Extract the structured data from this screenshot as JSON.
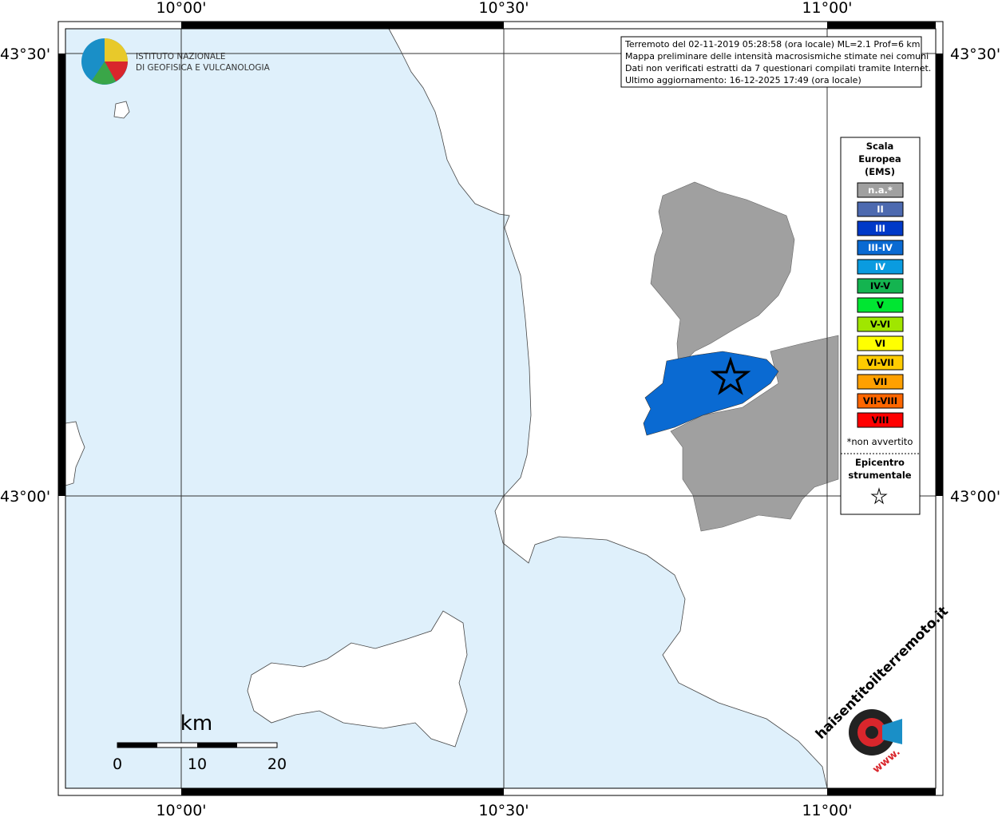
{
  "coordinates": {
    "lon_labels": [
      "10°00'",
      "10°30'",
      "11°00'"
    ],
    "lat_labels": [
      "43°30'",
      "43°00'"
    ]
  },
  "logo": {
    "line1": "ISTITUTO NAZIONALE",
    "line2": "DI GEOFISICA E VULCANOLOGIA"
  },
  "info_box": {
    "lines": [
      "Terremoto del 02-11-2019 05:28:58 (ora locale) ML=2.1 Prof=6 km",
      "Mappa preliminare delle intensità macrosismiche stimate nei comuni",
      "Dati non verificati estratti da 7 questionari compilati tramite Internet.",
      "Ultimo aggiornamento: 16-12-2025 17:49 (ora locale)"
    ]
  },
  "legend": {
    "title_lines": [
      "Scala",
      "Europea",
      "(EMS)"
    ],
    "items": [
      {
        "label": "n.a.*",
        "color": "#a0a0a0",
        "text_color": "#ffffff"
      },
      {
        "label": "II",
        "color": "#4d6ab0",
        "text_color": "#ffffff"
      },
      {
        "label": "III",
        "color": "#0039c8",
        "text_color": "#ffffff"
      },
      {
        "label": "III-IV",
        "color": "#0a6ad2",
        "text_color": "#ffffff"
      },
      {
        "label": "IV",
        "color": "#0a9be0",
        "text_color": "#ffffff"
      },
      {
        "label": "IV-V",
        "color": "#14b450",
        "text_color": "#000000"
      },
      {
        "label": "V",
        "color": "#00e632",
        "text_color": "#000000"
      },
      {
        "label": "V-VI",
        "color": "#a0e600",
        "text_color": "#000000"
      },
      {
        "label": "VI",
        "color": "#ffff00",
        "text_color": "#000000"
      },
      {
        "label": "VI-VII",
        "color": "#ffcc00",
        "text_color": "#000000"
      },
      {
        "label": "VII",
        "color": "#ffa000",
        "text_color": "#000000"
      },
      {
        "label": "VII-VIII",
        "color": "#ff6600",
        "text_color": "#000000"
      },
      {
        "label": "VIII",
        "color": "#ff0000",
        "text_color": "#000000"
      }
    ],
    "footnote": "*non avvertito",
    "epicenter_lines": [
      "Epicentro",
      "strumentale"
    ]
  },
  "scale_bar": {
    "unit": "km",
    "labels": [
      "0",
      "10",
      "20"
    ]
  },
  "watermark": {
    "site": "haisentitoilterremoto.it",
    "www": "www."
  }
}
